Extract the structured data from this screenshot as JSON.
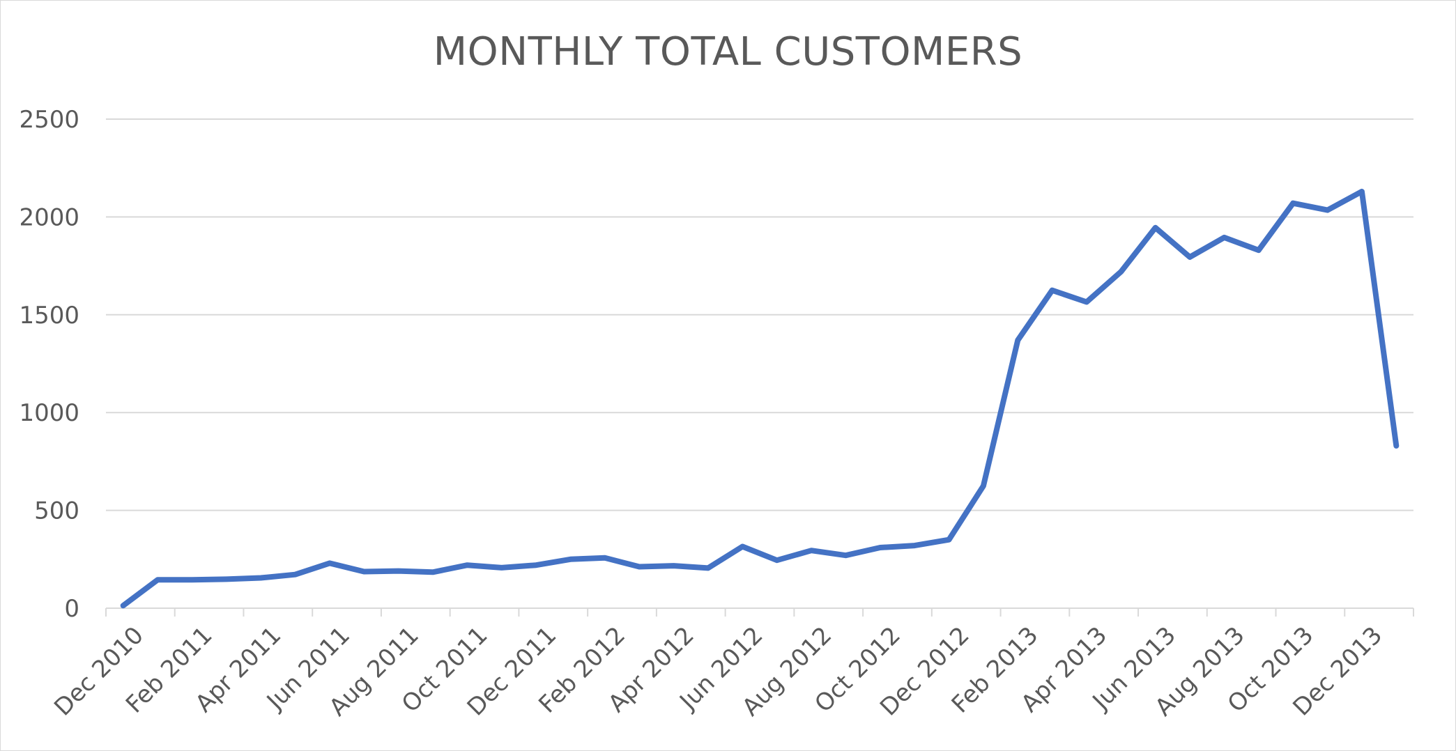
{
  "chart_data": {
    "type": "line",
    "title": "MONTHLY TOTAL CUSTOMERS",
    "xlabel": "",
    "ylabel": "",
    "ylim": [
      0,
      2500
    ],
    "y_ticks": [
      0,
      500,
      1000,
      1500,
      2000,
      2500
    ],
    "grid": true,
    "legend": "none",
    "x_tick_labels": [
      "Dec 2010",
      "Feb 2011",
      "Apr 2011",
      "Jun 2011",
      "Aug 2011",
      "Oct 2011",
      "Dec 2011",
      "Feb 2012",
      "Apr 2012",
      "Jun 2012",
      "Aug 2012",
      "Oct 2012",
      "Dec 2012",
      "Feb 2013",
      "Apr 2013",
      "Jun 2013",
      "Aug 2013",
      "Oct 2013",
      "Dec 2013"
    ],
    "x": [
      "Dec 2010",
      "Jan 2011",
      "Feb 2011",
      "Mar 2011",
      "Apr 2011",
      "May 2011",
      "Jun 2011",
      "Jul 2011",
      "Aug 2011",
      "Sep 2011",
      "Oct 2011",
      "Nov 2011",
      "Dec 2011",
      "Jan 2012",
      "Feb 2012",
      "Mar 2012",
      "Apr 2012",
      "May 2012",
      "Jun 2012",
      "Jul 2012",
      "Aug 2012",
      "Sep 2012",
      "Oct 2012",
      "Nov 2012",
      "Dec 2012",
      "Jan 2013",
      "Feb 2013",
      "Mar 2013",
      "Apr 2013",
      "May 2013",
      "Jun 2013",
      "Jul 2013",
      "Aug 2013",
      "Sep 2013",
      "Oct 2013",
      "Nov 2013",
      "Dec 2013",
      "Jan 2014"
    ],
    "series": [
      {
        "color": "#4472c4",
        "values": [
          13,
          145,
          145,
          148,
          155,
          172,
          230,
          187,
          190,
          184,
          220,
          207,
          220,
          250,
          257,
          212,
          217,
          205,
          315,
          245,
          295,
          270,
          310,
          320,
          350,
          625,
          1370,
          1625,
          1565,
          1720,
          1945,
          1795,
          1895,
          1830,
          2070,
          2035,
          2130,
          830
        ]
      }
    ]
  },
  "colors": {
    "line": "#4472c4",
    "grid": "#d9d9d9",
    "text": "#595959"
  }
}
